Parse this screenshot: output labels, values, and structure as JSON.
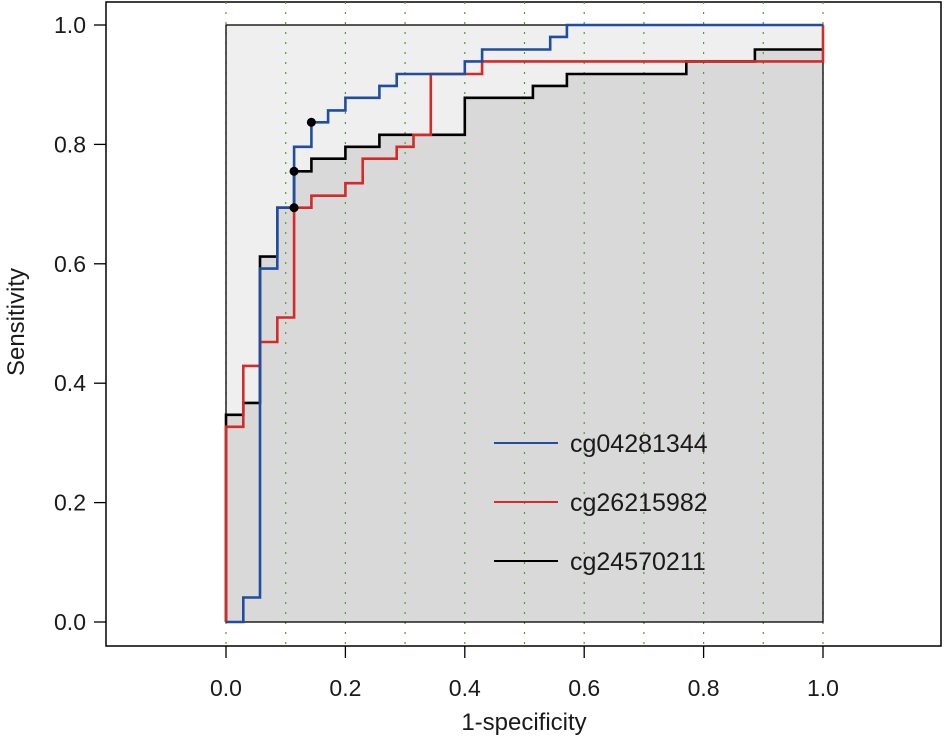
{
  "chart_data": {
    "type": "line",
    "style": "step",
    "title": "",
    "xlabel": "1-specificity",
    "ylabel": "Sensitivity",
    "xlim": [
      -0.2,
      1.2
    ],
    "ylim": [
      0,
      1
    ],
    "x_ticks": [
      "0.0",
      "0.2",
      "0.4",
      "0.6",
      "0.8",
      "1.0"
    ],
    "y_ticks": [
      "0.0",
      "0.2",
      "0.4",
      "0.6",
      "0.8",
      "1.0"
    ],
    "grid": "vertical dotted",
    "legend_position": "bottom-right",
    "colors": {
      "frame": "#000000",
      "outer_band": "#efefef",
      "under_curve": "#d9d9d9",
      "grid": "#4aa02c"
    },
    "series": [
      {
        "name": "cg04281344",
        "color": "#1f4ea0",
        "points": [
          [
            0,
            0
          ],
          [
            0.029,
            0
          ],
          [
            0.029,
            0.041
          ],
          [
            0.057,
            0.041
          ],
          [
            0.057,
            0.592
          ],
          [
            0.086,
            0.592
          ],
          [
            0.086,
            0.694
          ],
          [
            0.114,
            0.694
          ],
          [
            0.114,
            0.796
          ],
          [
            0.143,
            0.796
          ],
          [
            0.143,
            0.837
          ],
          [
            0.171,
            0.837
          ],
          [
            0.171,
            0.857
          ],
          [
            0.2,
            0.857
          ],
          [
            0.2,
            0.878
          ],
          [
            0.257,
            0.878
          ],
          [
            0.257,
            0.898
          ],
          [
            0.286,
            0.898
          ],
          [
            0.286,
            0.918
          ],
          [
            0.4,
            0.918
          ],
          [
            0.4,
            0.939
          ],
          [
            0.429,
            0.939
          ],
          [
            0.429,
            0.959
          ],
          [
            0.543,
            0.959
          ],
          [
            0.543,
            0.98
          ],
          [
            0.571,
            0.98
          ],
          [
            0.571,
            1.0
          ],
          [
            1.0,
            1.0
          ]
        ],
        "marker": [
          0.143,
          0.837
        ]
      },
      {
        "name": "cg26215982",
        "color": "#d42a2a",
        "points": [
          [
            0,
            0
          ],
          [
            0,
            0.327
          ],
          [
            0.029,
            0.327
          ],
          [
            0.029,
            0.429
          ],
          [
            0.057,
            0.429
          ],
          [
            0.057,
            0.469
          ],
          [
            0.086,
            0.469
          ],
          [
            0.086,
            0.51
          ],
          [
            0.114,
            0.51
          ],
          [
            0.114,
            0.694
          ],
          [
            0.143,
            0.694
          ],
          [
            0.143,
            0.714
          ],
          [
            0.2,
            0.714
          ],
          [
            0.2,
            0.735
          ],
          [
            0.229,
            0.735
          ],
          [
            0.229,
            0.776
          ],
          [
            0.286,
            0.776
          ],
          [
            0.286,
            0.796
          ],
          [
            0.314,
            0.796
          ],
          [
            0.314,
            0.816
          ],
          [
            0.343,
            0.816
          ],
          [
            0.343,
            0.918
          ],
          [
            0.4,
            0.918
          ],
          [
            0.4,
            0.918
          ],
          [
            0.429,
            0.918
          ],
          [
            0.429,
            0.939
          ],
          [
            1.0,
            0.939
          ],
          [
            1.0,
            1.0
          ]
        ],
        "marker": [
          0.114,
          0.694
        ]
      },
      {
        "name": "cg24570211",
        "color": "#000000",
        "points": [
          [
            0,
            0
          ],
          [
            0,
            0.347
          ],
          [
            0.029,
            0.347
          ],
          [
            0.029,
            0.367
          ],
          [
            0.057,
            0.367
          ],
          [
            0.057,
            0.612
          ],
          [
            0.086,
            0.612
          ],
          [
            0.086,
            0.694
          ],
          [
            0.114,
            0.694
          ],
          [
            0.114,
            0.755
          ],
          [
            0.143,
            0.755
          ],
          [
            0.143,
            0.776
          ],
          [
            0.2,
            0.776
          ],
          [
            0.2,
            0.796
          ],
          [
            0.257,
            0.796
          ],
          [
            0.257,
            0.816
          ],
          [
            0.4,
            0.816
          ],
          [
            0.4,
            0.878
          ],
          [
            0.514,
            0.878
          ],
          [
            0.514,
            0.898
          ],
          [
            0.571,
            0.898
          ],
          [
            0.571,
            0.918
          ],
          [
            0.771,
            0.918
          ],
          [
            0.771,
            0.939
          ],
          [
            0.886,
            0.939
          ],
          [
            0.886,
            0.959
          ],
          [
            1.0,
            0.959
          ]
        ],
        "marker": [
          0.114,
          0.755
        ]
      }
    ]
  }
}
